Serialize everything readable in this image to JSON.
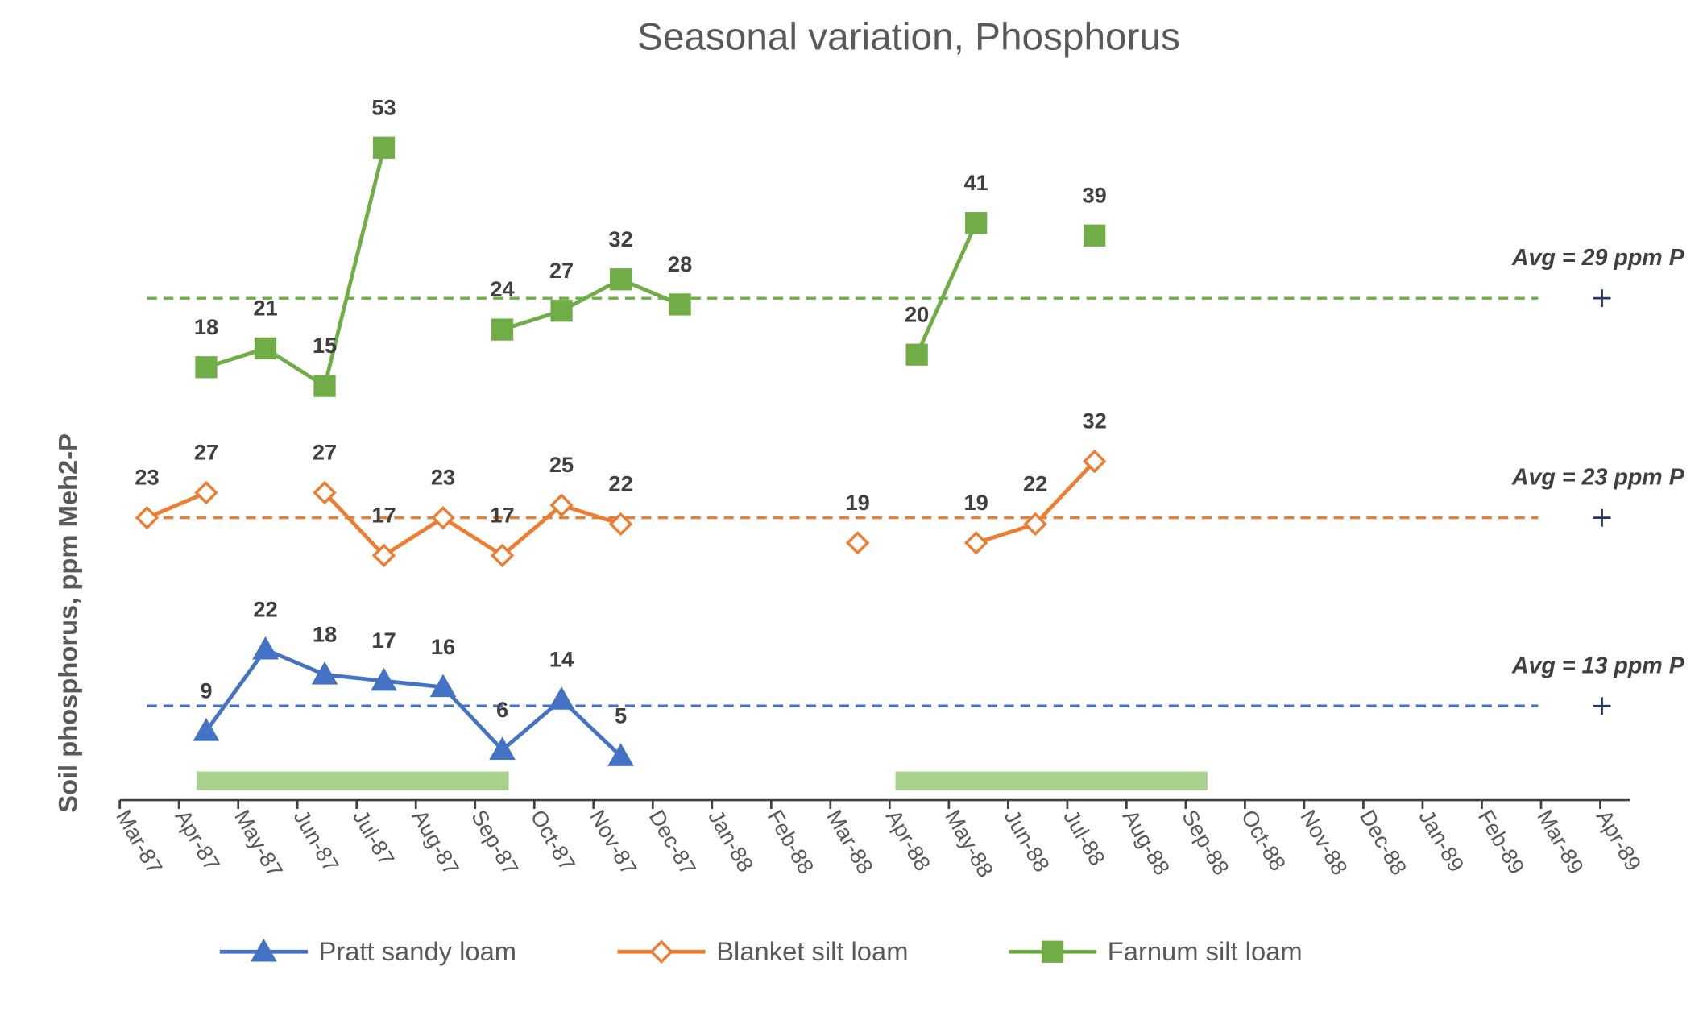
{
  "chart_data": {
    "type": "line",
    "title": "Seasonal variation, Phosphorus",
    "y_label": "Soil phosphorus, ppm Meh2-P",
    "x": [
      "Mar-87",
      "Apr-87",
      "May-87",
      "Jun-87",
      "Jul-87",
      "Aug-87",
      "Sep-87",
      "Oct-87",
      "Nov-87",
      "Dec-87",
      "Jan-88",
      "Feb-88",
      "Mar-88",
      "Apr-88",
      "May-88",
      "Jun-88",
      "Jul-88",
      "Aug-88",
      "Sep-88",
      "Oct-88",
      "Nov-88",
      "Dec-88",
      "Jan-89",
      "Feb-89",
      "Mar-89",
      "Apr-89"
    ],
    "series": [
      {
        "name": "Pratt sandy loam",
        "color": "#4472c4",
        "marker": "triangle",
        "ylim": [
          -2,
          108
        ],
        "values": [
          null,
          9,
          22,
          18,
          17,
          16,
          6,
          14,
          5,
          null,
          null,
          null,
          null,
          null,
          null,
          null,
          null,
          null,
          null,
          null,
          null,
          null,
          null,
          null,
          null,
          null
        ],
        "avg": 13,
        "avg_label": "Avg = 13 ppm P"
      },
      {
        "name": "Blanket silt loam",
        "color": "#ed7d31",
        "marker": "diamond",
        "ylim": [
          -22,
          88
        ],
        "values": [
          23,
          27,
          null,
          27,
          17,
          23,
          17,
          25,
          22,
          null,
          null,
          null,
          19,
          null,
          19,
          22,
          32,
          null,
          null,
          null,
          null,
          null,
          null,
          null,
          null,
          null
        ],
        "avg": 23,
        "avg_label": "Avg = 23 ppm P"
      },
      {
        "name": "Farnum silt loam",
        "color": "#70ad47",
        "marker": "square",
        "ylim": [
          -51,
          59
        ],
        "values": [
          null,
          18,
          21,
          15,
          53,
          null,
          24,
          27,
          32,
          28,
          null,
          null,
          null,
          20,
          41,
          null,
          39,
          null,
          null,
          null,
          null,
          null,
          null,
          null,
          null,
          null
        ],
        "avg": 29,
        "avg_label": "Avg = 29 ppm P"
      }
    ]
  }
}
